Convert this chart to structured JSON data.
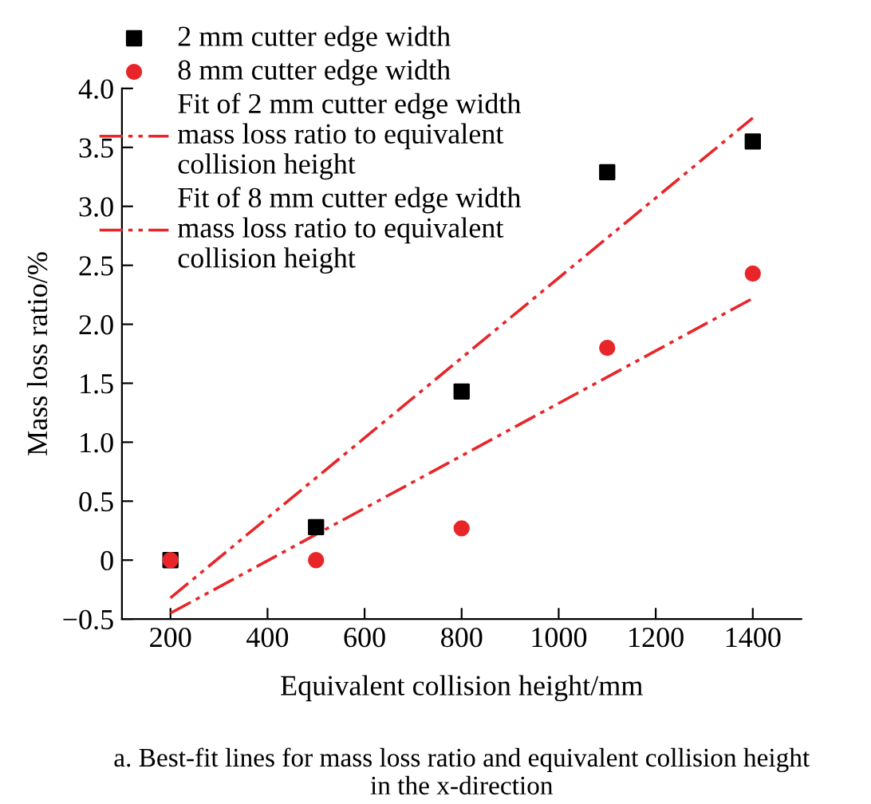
{
  "chart_data": {
    "type": "scatter",
    "xlabel": "Equivalent collision height/mm",
    "ylabel": "Mass loss ratio/%",
    "xlim": [
      100,
      1500
    ],
    "xticks": [
      200,
      400,
      600,
      800,
      1000,
      1200,
      1400
    ],
    "ylim": [
      -0.5,
      4.0
    ],
    "yticks": [
      {
        "value": -0.5,
        "label": "−0.5"
      },
      0,
      0.5,
      {
        "value": 1,
        "label": "1.0"
      },
      1.5,
      {
        "value": 2,
        "label": "2.0"
      },
      2.5,
      {
        "value": 3,
        "label": "3.0"
      },
      3.5,
      {
        "value": 4,
        "label": "4.0"
      }
    ],
    "grid": false,
    "legend": "top left",
    "series": [
      {
        "name": "2 mm cutter edge width",
        "marker": "square",
        "color": "#000000",
        "x": [
          200,
          500,
          800,
          1100,
          1400
        ],
        "values": [
          0,
          0.28,
          1.43,
          3.29,
          3.55
        ]
      },
      {
        "name": "8 mm cutter edge width",
        "marker": "circle",
        "color": "#e8262a",
        "x": [
          200,
          500,
          800,
          1100,
          1400
        ],
        "values": [
          0,
          0,
          0.27,
          1.8,
          2.43
        ]
      },
      {
        "name": "Fit of 2 mm cutter edge width\nmass loss ratio to equivalent\ncollision height",
        "type": "line",
        "line_style": "dashdot",
        "color": "#e8262a",
        "x": [
          200,
          1400
        ],
        "values": [
          -0.32,
          3.75
        ]
      },
      {
        "name": "Fit of 8 mm cutter edge width\nmass loss ratio to equivalent\ncollision height",
        "type": "line",
        "line_style": "dashdot",
        "color": "#e8262a",
        "x": [
          200,
          1400
        ],
        "values": [
          -0.45,
          2.22
        ]
      }
    ],
    "annotations": [
      "a. Best-fit lines for mass loss ratio and equivalent collision height\nin the x-direction"
    ]
  }
}
